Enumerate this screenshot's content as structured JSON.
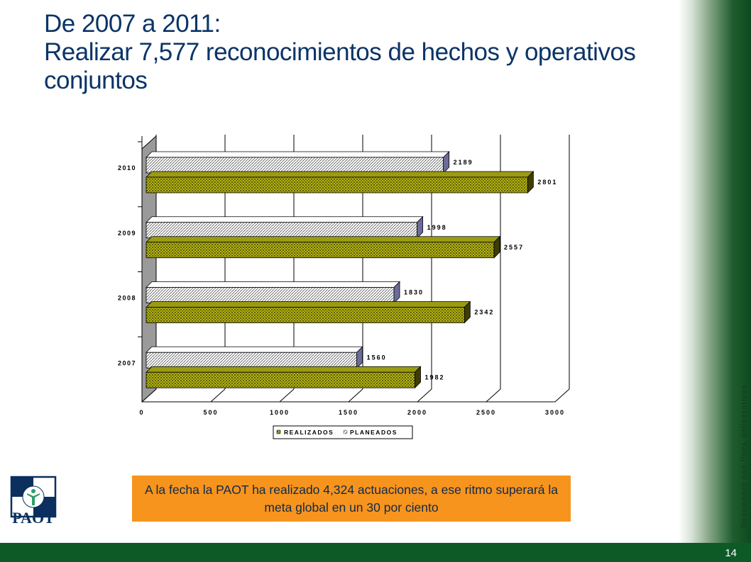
{
  "slide": {
    "title_line1": "De 2007 a 2011:",
    "title_line2": "Realizar 7,577 reconocimientos de hechos y operativos conjuntos",
    "note": "A la fecha la PAOT ha realizado 4,324  actuaciones, a ese ritmo superará la meta global en un 30 por ciento",
    "side_text": "Documento con fines deliberativos",
    "page_number": "14",
    "logo_text": "PAOT"
  },
  "colors": {
    "title": "#0b3467",
    "realizados": "#8a8a10",
    "planeados": "#ffffff",
    "note_bg": "#f7941d",
    "footer": "#0e5a27"
  },
  "chart_data": {
    "type": "bar",
    "orientation": "horizontal",
    "categories": [
      "2007",
      "2008",
      "2009",
      "2010"
    ],
    "series": [
      {
        "name": "REALIZADOS",
        "values": [
          1982,
          2342,
          2557,
          2801
        ]
      },
      {
        "name": "PLANEADOS",
        "values": [
          1560,
          1830,
          1998,
          2189
        ]
      }
    ],
    "xlim": [
      0,
      3000
    ],
    "xticks": [
      "0",
      "500",
      "1000",
      "1500",
      "2000",
      "2500",
      "3000"
    ],
    "grid": true,
    "legend": "bottom"
  }
}
